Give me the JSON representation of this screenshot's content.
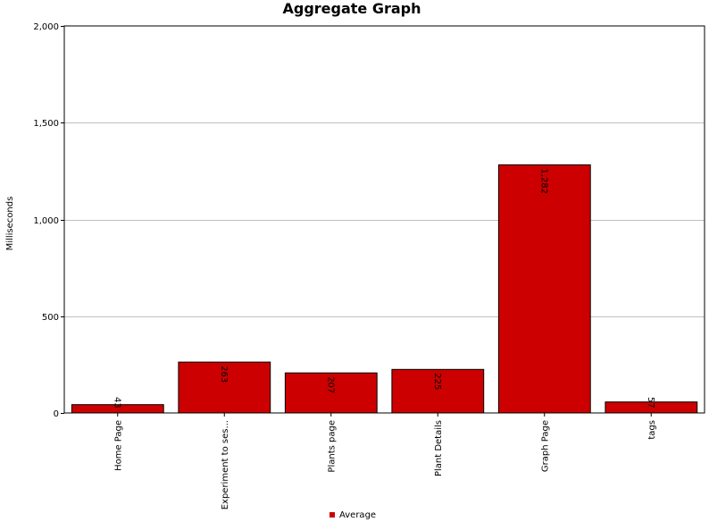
{
  "chart_data": {
    "type": "bar",
    "title": "Aggregate Graph",
    "xlabel": "",
    "ylabel": "Milliseconds",
    "ylim": [
      0,
      2000
    ],
    "yticks": [
      0,
      500,
      1000,
      1500,
      2000
    ],
    "ytick_labels": [
      "0",
      "500",
      "1,000",
      "1,500",
      "2,000"
    ],
    "grid": true,
    "categories": [
      "Home Page",
      "Experiment to ses...",
      "Plants page",
      "Plant Details",
      "Graph Page",
      "tags"
    ],
    "series": [
      {
        "name": "Average",
        "values": [
          43,
          263,
          207,
          225,
          1282,
          57
        ],
        "labels": [
          "43",
          "263",
          "207",
          "225",
          "1,282",
          "57"
        ],
        "color": "#cc0000"
      }
    ],
    "legend_position": "bottom-center"
  }
}
